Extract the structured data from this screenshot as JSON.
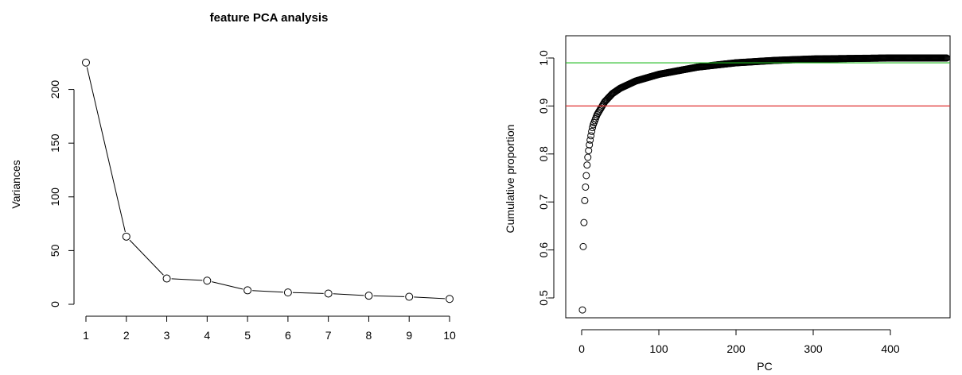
{
  "chart_data": [
    {
      "type": "line",
      "title": "feature PCA analysis",
      "xlabel": "",
      "ylabel": "Variances",
      "categories": [
        "1",
        "2",
        "3",
        "4",
        "5",
        "6",
        "7",
        "8",
        "9",
        "10"
      ],
      "values": [
        225,
        63,
        24,
        22,
        13,
        11,
        10,
        8,
        7,
        5
      ],
      "ylim": [
        0,
        230
      ],
      "yticks": [
        "0",
        "50",
        "100",
        "150",
        "200"
      ],
      "grid": false,
      "marker": "open-circle",
      "line_color": "#000000"
    },
    {
      "type": "scatter",
      "title": "",
      "xlabel": "PC",
      "ylabel": "Cumulative proportion",
      "x_range": [
        1,
        473
      ],
      "xlim": [
        -10,
        485
      ],
      "ylim": [
        0.45,
        1.025
      ],
      "xticks": [
        "0",
        "100",
        "200",
        "300",
        "400"
      ],
      "yticks": [
        "0.5",
        "0.6",
        "0.7",
        "0.8",
        "0.9",
        "1.0"
      ],
      "first_points": [
        0.475,
        0.607,
        0.657,
        0.703,
        0.731,
        0.755,
        0.777,
        0.793,
        0.807,
        0.819,
        0.829,
        0.838,
        0.847,
        0.855
      ],
      "curve_anchors": [
        [
          15,
          0.861
        ],
        [
          20,
          0.882
        ],
        [
          30,
          0.909
        ],
        [
          40,
          0.926
        ],
        [
          50,
          0.937
        ],
        [
          70,
          0.952
        ],
        [
          100,
          0.966
        ],
        [
          150,
          0.981
        ],
        [
          200,
          0.99
        ],
        [
          250,
          0.995
        ],
        [
          300,
          0.998
        ],
        [
          350,
          0.999
        ],
        [
          400,
          1.0
        ],
        [
          473,
          1.0
        ]
      ],
      "reference_lines": [
        {
          "y": 0.99,
          "color": "#22bb22"
        },
        {
          "y": 0.9,
          "color": "#e03030"
        }
      ],
      "grid": false,
      "marker": "open-circle"
    }
  ]
}
